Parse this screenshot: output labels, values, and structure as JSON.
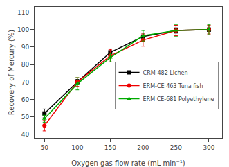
{
  "chart_data": {
    "type": "line",
    "x": [
      50,
      100,
      150,
      200,
      250,
      300
    ],
    "series": [
      {
        "name": "CRM-482 Lichen",
        "color": "#000000",
        "marker": "square",
        "line_style": "solid",
        "values": [
          52.0,
          70.0,
          87.0,
          96.0,
          99.5,
          100.0
        ],
        "yerr": [
          2.5,
          1.5,
          2.0,
          2.0,
          1.5,
          1.0
        ]
      },
      {
        "name": "ERM-CE 463 Tuna fish",
        "color": "#ee0000",
        "marker": "circle",
        "line_style": "solid",
        "values": [
          45.0,
          70.0,
          85.0,
          94.0,
          99.5,
          100.0
        ],
        "yerr": [
          3.0,
          2.5,
          3.5,
          3.5,
          3.0,
          2.5
        ]
      },
      {
        "name": "ERM CE-681 Polyethylene",
        "color": "#00aa00",
        "marker": "triangle-up",
        "line_style": "solid",
        "values": [
          49.0,
          69.0,
          84.0,
          96.5,
          99.5,
          100.0
        ],
        "yerr": [
          2.0,
          3.5,
          2.5,
          3.0,
          3.5,
          3.0
        ]
      }
    ],
    "xlabel": "Oxygen gas flow rate (mL min⁻¹)",
    "ylabel": "Recovery of Mercury (%)",
    "xlim": [
      35,
      320
    ],
    "ylim": [
      38,
      113
    ],
    "xticks": [
      50,
      100,
      150,
      200,
      250,
      300
    ],
    "yticks": [
      40,
      50,
      60,
      70,
      80,
      90,
      100,
      110
    ],
    "grid": false,
    "legend": "right"
  }
}
